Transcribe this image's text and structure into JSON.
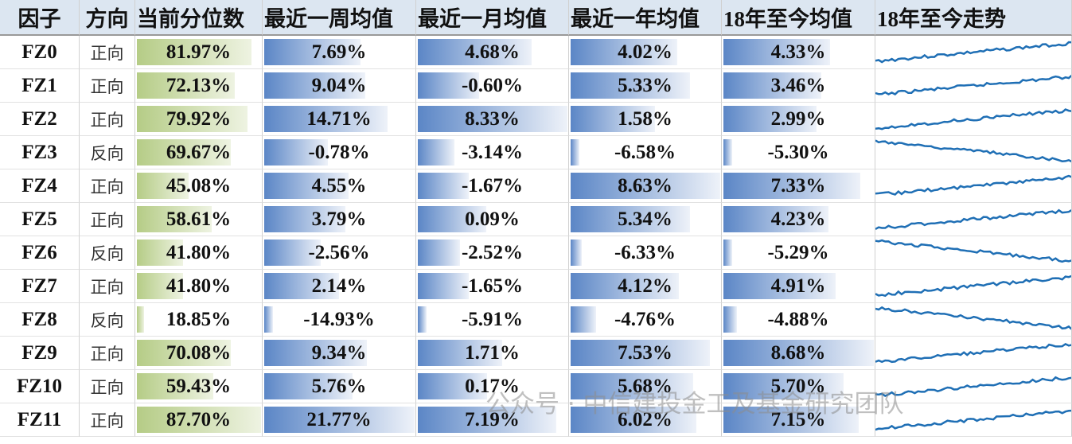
{
  "table": {
    "header": [
      "因子",
      "方向",
      "当前分位数",
      "最近一周均值",
      "最近一月均值",
      "最近一年均值",
      "18年至今均值",
      "18年至今走势"
    ],
    "rows": [
      [
        "FZ0",
        "正向",
        "81.97%",
        "7.69%",
        "4.68%",
        "4.02%",
        "4.33%"
      ],
      [
        "FZ1",
        "正向",
        "72.13%",
        "9.04%",
        "-0.60%",
        "5.33%",
        "3.46%"
      ],
      [
        "FZ2",
        "正向",
        "79.92%",
        "14.71%",
        "8.33%",
        "1.58%",
        "2.99%"
      ],
      [
        "FZ3",
        "反向",
        "69.67%",
        "-0.78%",
        "-3.14%",
        "-6.58%",
        "-5.30%"
      ],
      [
        "FZ4",
        "正向",
        "45.08%",
        "4.55%",
        "-1.67%",
        "8.63%",
        "7.33%"
      ],
      [
        "FZ5",
        "正向",
        "58.61%",
        "3.79%",
        "0.09%",
        "5.34%",
        "4.23%"
      ],
      [
        "FZ6",
        "反向",
        "41.80%",
        "-2.56%",
        "-2.52%",
        "-6.33%",
        "-5.29%"
      ],
      [
        "FZ7",
        "正向",
        "41.80%",
        "2.14%",
        "-1.65%",
        "4.12%",
        "4.91%"
      ],
      [
        "FZ8",
        "反向",
        "18.85%",
        "-14.93%",
        "-5.91%",
        "-4.76%",
        "-4.88%"
      ],
      [
        "FZ9",
        "正向",
        "70.08%",
        "9.34%",
        "1.71%",
        "7.53%",
        "8.68%"
      ],
      [
        "FZ10",
        "正向",
        "59.43%",
        "5.76%",
        "0.17%",
        "5.68%",
        "5.70%"
      ],
      [
        "FZ11",
        "正向",
        "87.70%",
        "21.77%",
        "7.19%",
        "6.02%",
        "7.15%"
      ]
    ]
  },
  "watermark": "公众号 · 中信建投金工及基金研究团队"
}
